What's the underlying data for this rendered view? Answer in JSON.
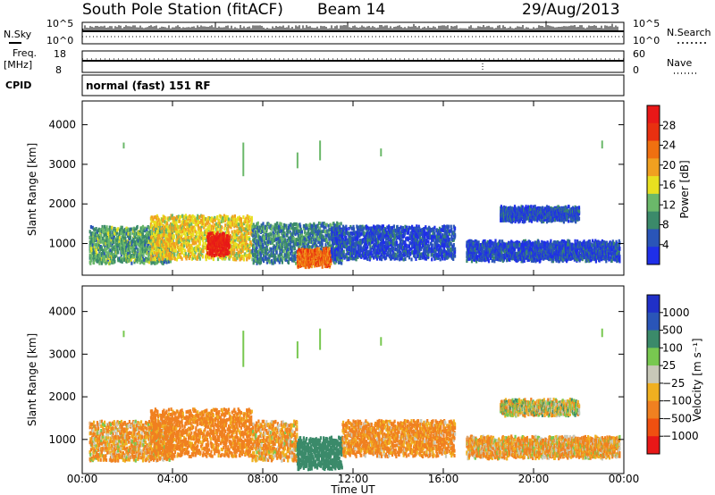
{
  "header": {
    "title": "South Pole Station (fitACF)",
    "beam": "Beam 14",
    "date": "29/Aug/2013"
  },
  "panel_labels": {
    "nsky": "N.Sky",
    "nsearch": "N.Search",
    "freq_top": "Freq.",
    "freq_unit": "[MHz]",
    "nave": "Nave",
    "cpid": "CPID",
    "cpid_text": "normal (fast) 151 RF"
  },
  "side_ticks": {
    "nsky_left": [
      "10^5",
      "10^0"
    ],
    "nsky_right": [
      "10^5",
      "10^0"
    ],
    "freq_left": [
      "18",
      "8"
    ],
    "nave_right": [
      "60",
      "0"
    ]
  },
  "colors": {
    "power_scale": [
      "#1f2fe8",
      "#2a55b8",
      "#3b8a6a",
      "#6bb86a",
      "#e8e020",
      "#f0a020",
      "#f07010",
      "#e83010",
      "#e81818"
    ],
    "velocity_scale": [
      "#2030c8",
      "#2a55b8",
      "#3b8a6a",
      "#78c850",
      "#c8c8b8",
      "#f0b020",
      "#f08020",
      "#f05010",
      "#e81818"
    ]
  },
  "chart_data": [
    {
      "type": "heatmap",
      "name": "power",
      "ylabel": "Slant Range [km]",
      "yticks": [
        "1000",
        "2000",
        "3000",
        "4000"
      ],
      "ylim": [
        200,
        4600
      ],
      "colorbar_label": "Power [dB]",
      "colorbar_ticks": [
        "4",
        "8",
        "12",
        "16",
        "20",
        "24",
        "28"
      ],
      "colorbar_range": [
        0,
        30
      ],
      "xlim_hours": [
        0,
        24
      ],
      "regions": [
        {
          "t0": 0.3,
          "t1": 4.0,
          "r0": 600,
          "r1": 1500,
          "v": 10
        },
        {
          "t0": 3.0,
          "t1": 7.5,
          "r0": 700,
          "r1": 1800,
          "v": 16
        },
        {
          "t0": 5.5,
          "t1": 6.5,
          "r0": 800,
          "r1": 1300,
          "v": 28
        },
        {
          "t0": 7.5,
          "t1": 11.5,
          "r0": 600,
          "r1": 1600,
          "v": 8
        },
        {
          "t0": 9.5,
          "t1": 11.0,
          "r0": 500,
          "r1": 900,
          "v": 22
        },
        {
          "t0": 11.0,
          "t1": 16.5,
          "r0": 700,
          "r1": 1500,
          "v": 4
        },
        {
          "t0": 17.0,
          "t1": 23.8,
          "r0": 650,
          "r1": 1100,
          "v": 4
        },
        {
          "t0": 18.5,
          "t1": 22.0,
          "r0": 1650,
          "r1": 1950,
          "v": 4
        }
      ]
    },
    {
      "type": "heatmap",
      "name": "velocity",
      "ylabel": "Slant Range [km]",
      "yticks": [
        "1000",
        "2000",
        "3000",
        "4000"
      ],
      "ylim": [
        200,
        4600
      ],
      "colorbar_label": "Velocity [m s⁻¹]",
      "colorbar_ticks": [
        "1000",
        "500",
        "100",
        "25",
        "−25",
        "−100",
        "−500",
        "−1000"
      ],
      "xlim_hours": [
        0,
        24
      ],
      "regions": [
        {
          "t0": 0.3,
          "t1": 4.0,
          "r0": 600,
          "r1": 1500,
          "v": -100
        },
        {
          "t0": 3.0,
          "t1": 7.5,
          "r0": 700,
          "r1": 1800,
          "v": -200
        },
        {
          "t0": 7.5,
          "t1": 9.5,
          "r0": 600,
          "r1": 1500,
          "v": -100
        },
        {
          "t0": 9.5,
          "t1": 11.5,
          "r0": 400,
          "r1": 1100,
          "v": 300
        },
        {
          "t0": 11.5,
          "t1": 16.5,
          "r0": 700,
          "r1": 1500,
          "v": -150
        },
        {
          "t0": 17.0,
          "t1": 23.8,
          "r0": 650,
          "r1": 1100,
          "v": -100
        },
        {
          "t0": 18.5,
          "t1": 22.0,
          "r0": 1650,
          "r1": 1950,
          "v": 0
        }
      ]
    }
  ],
  "xaxis": {
    "ticks": [
      "00:00",
      "04:00",
      "08:00",
      "12:00",
      "16:00",
      "20:00",
      "00:00"
    ],
    "label": "Time UT"
  }
}
